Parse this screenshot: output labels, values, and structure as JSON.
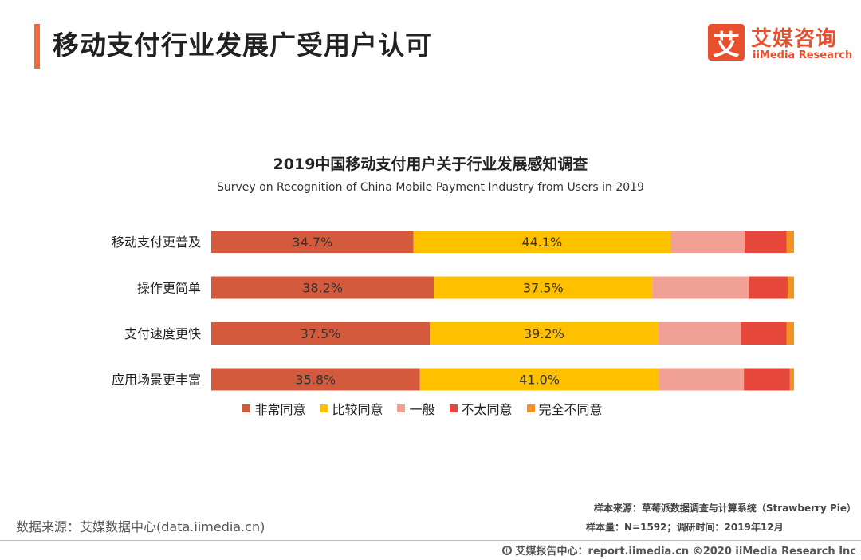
{
  "header": {
    "title": "移动支付行业发展广受用户认可",
    "accent_color": "#F06A3B"
  },
  "brand": {
    "logo_char": "艾",
    "name_cn": "艾媒咨询",
    "name_en": "iiMedia Research",
    "color": "#E8502D"
  },
  "chart_data": {
    "type": "bar",
    "orientation": "horizontal",
    "stacked": true,
    "title": "2019中国移动支付用户关于行业发展感知调查",
    "subtitle": "Survey on Recognition of China Mobile Payment Industry from Users in 2019",
    "categories": [
      "移动支付更普及",
      "操作更简单",
      "支付速度更快",
      "应用场景更丰富"
    ],
    "series": [
      {
        "name": "非常同意",
        "color": "#D35A3C",
        "values": [
          34.7,
          38.2,
          37.5,
          35.8
        ],
        "labels": [
          "34.7%",
          "38.2%",
          "37.5%",
          "35.8%"
        ]
      },
      {
        "name": "比较同意",
        "color": "#FFC000",
        "values": [
          44.1,
          37.5,
          39.2,
          41.0
        ],
        "labels": [
          "44.1%",
          "37.5%",
          "39.2%",
          "41.0%"
        ]
      },
      {
        "name": "一般",
        "color": "#F0A094",
        "values": [
          12.7,
          16.6,
          14.2,
          14.6
        ]
      },
      {
        "name": "不太同意",
        "color": "#E5473A",
        "values": [
          7.2,
          6.6,
          7.8,
          7.9
        ]
      },
      {
        "name": "完全不同意",
        "color": "#F39224",
        "values": [
          1.3,
          1.1,
          1.3,
          0.7
        ]
      }
    ],
    "xlim": [
      0,
      100
    ],
    "legend_position": "bottom"
  },
  "footer": {
    "source": "数据来源：艾媒数据中心(data.iimedia.cn)",
    "sample_source": "样本来源：草莓派数据调查与计算系统（Strawberry Pie）",
    "sample_size": "样本量：N=1592；调研时间：2019年12月",
    "copyright": "艾媒报告中心：report.iimedia.cn  ©2020  iiMedia Research  Inc"
  }
}
